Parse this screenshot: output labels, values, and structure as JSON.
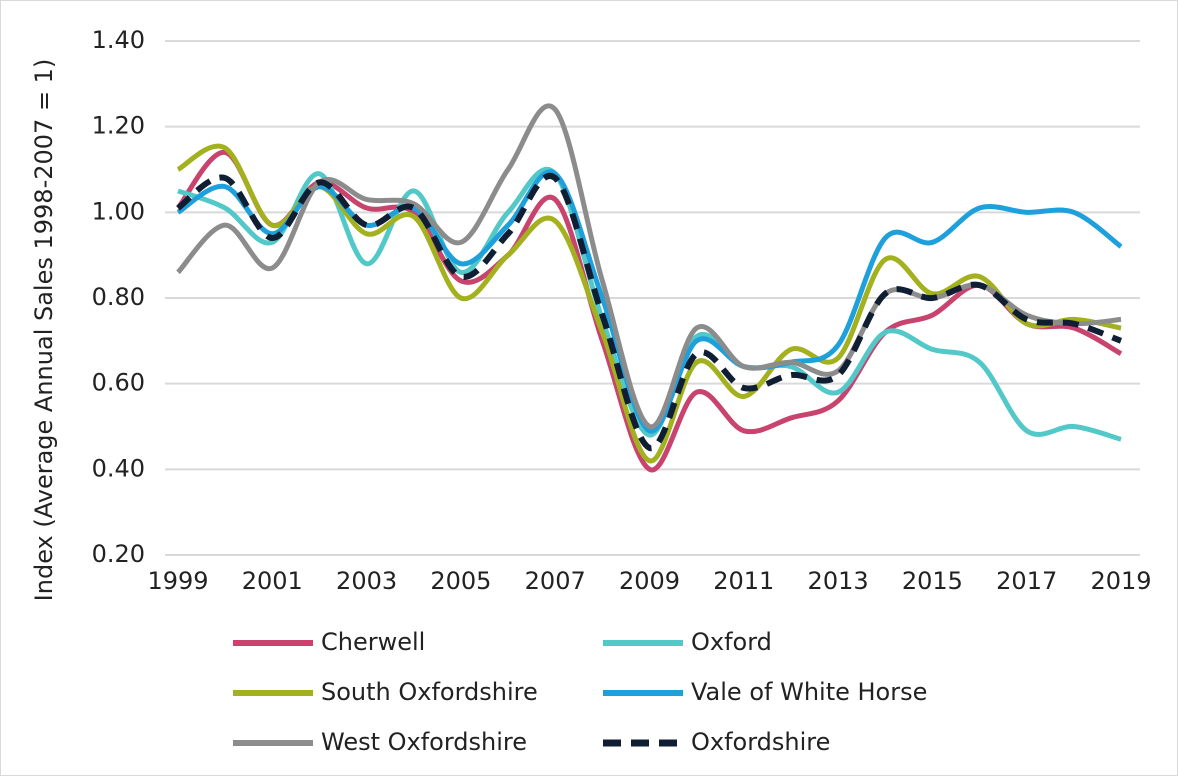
{
  "chart_data": {
    "type": "line",
    "y_axis_label": "Index (Average Annual Sales 1998-2007 = 1)",
    "x": [
      1999,
      2000,
      2001,
      2002,
      2003,
      2004,
      2005,
      2006,
      2007,
      2008,
      2009,
      2010,
      2011,
      2012,
      2013,
      2014,
      2015,
      2016,
      2017,
      2018,
      2019
    ],
    "xlim": [
      1999,
      2019
    ],
    "xticks": [
      1999,
      2001,
      2003,
      2005,
      2007,
      2009,
      2011,
      2013,
      2015,
      2017,
      2019
    ],
    "ylim": [
      0.2,
      1.4
    ],
    "yticks": [
      {
        "value": 0.2,
        "label": "0.20"
      },
      {
        "value": 0.4,
        "label": "0.40"
      },
      {
        "value": 0.6,
        "label": "0.60"
      },
      {
        "value": 0.8,
        "label": "0.80"
      },
      {
        "value": 1.0,
        "label": "1.00"
      },
      {
        "value": 1.2,
        "label": "1.20"
      },
      {
        "value": 1.4,
        "label": "1.40"
      }
    ],
    "grid": true,
    "legend": "bottom",
    "series": [
      {
        "name": "Cherwell",
        "color": "#c8436d",
        "values": [
          1.01,
          1.14,
          0.97,
          1.07,
          1.01,
          1.0,
          0.84,
          0.9,
          1.03,
          0.7,
          0.4,
          0.58,
          0.49,
          0.52,
          0.56,
          0.72,
          0.76,
          0.83,
          0.74,
          0.73,
          0.67
        ]
      },
      {
        "name": "Oxford",
        "color": "#52c8c8",
        "values": [
          1.05,
          1.01,
          0.93,
          1.09,
          0.88,
          1.05,
          0.86,
          1.0,
          1.09,
          0.75,
          0.48,
          0.71,
          0.64,
          0.64,
          0.58,
          0.72,
          0.68,
          0.65,
          0.49,
          0.5,
          0.47
        ]
      },
      {
        "name": "South Oxfordshire",
        "color": "#a3b11e",
        "values": [
          1.1,
          1.15,
          0.97,
          1.06,
          0.95,
          0.99,
          0.8,
          0.9,
          0.98,
          0.72,
          0.42,
          0.65,
          0.57,
          0.68,
          0.66,
          0.89,
          0.81,
          0.85,
          0.74,
          0.75,
          0.73
        ]
      },
      {
        "name": "Vale of White Horse",
        "color": "#1ea0dc",
        "values": [
          1.0,
          1.06,
          0.95,
          1.06,
          0.97,
          1.01,
          0.88,
          0.97,
          1.09,
          0.8,
          0.49,
          0.7,
          0.64,
          0.65,
          0.69,
          0.94,
          0.93,
          1.01,
          1.0,
          1.0,
          0.92
        ]
      },
      {
        "name": "West Oxfordshire",
        "color": "#8c8c8c",
        "values": [
          0.86,
          0.97,
          0.87,
          1.07,
          1.03,
          1.02,
          0.93,
          1.1,
          1.24,
          0.84,
          0.5,
          0.73,
          0.64,
          0.65,
          0.63,
          0.81,
          0.8,
          0.83,
          0.76,
          0.74,
          0.75
        ]
      },
      {
        "name": "Oxfordshire",
        "color": "#0f1e32",
        "dashed": true,
        "values": [
          1.01,
          1.08,
          0.94,
          1.07,
          0.97,
          1.01,
          0.85,
          0.95,
          1.08,
          0.76,
          0.45,
          0.67,
          0.59,
          0.62,
          0.62,
          0.81,
          0.8,
          0.83,
          0.75,
          0.74,
          0.7
        ]
      }
    ]
  }
}
